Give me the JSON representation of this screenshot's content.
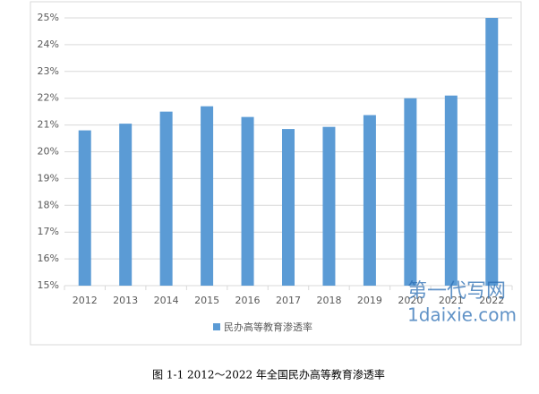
{
  "chart_data": {
    "type": "bar",
    "categories": [
      "2012",
      "2013",
      "2014",
      "2015",
      "2016",
      "2017",
      "2018",
      "2019",
      "2020",
      "2021",
      "2022"
    ],
    "series": [
      {
        "name": "民办高等教育渗透率",
        "color": "#5b9bd5",
        "values": [
          20.8,
          21.05,
          21.5,
          21.7,
          21.3,
          20.85,
          20.93,
          21.37,
          22.0,
          22.1,
          25.0
        ]
      }
    ],
    "ylim": [
      15,
      25
    ],
    "yticks": [
      {
        "value": 15,
        "label": "15%"
      },
      {
        "value": 16,
        "label": "16%"
      },
      {
        "value": 17,
        "label": "17%"
      },
      {
        "value": 18,
        "label": "18%"
      },
      {
        "value": 19,
        "label": "19%"
      },
      {
        "value": 20,
        "label": "20%"
      },
      {
        "value": 21,
        "label": "21%"
      },
      {
        "value": 22,
        "label": "22%"
      },
      {
        "value": 23,
        "label": "23%"
      },
      {
        "value": 24,
        "label": "24%"
      },
      {
        "value": 25,
        "label": "25%"
      }
    ],
    "grid": true,
    "legend": "bottom",
    "caption": "图 1-1 2012～2022 年全国民办高等教育渗透率",
    "watermark": [
      "第一代写网",
      "1daixie.com"
    ]
  }
}
